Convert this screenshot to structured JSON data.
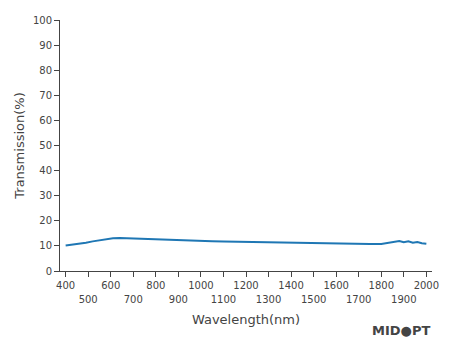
{
  "chart_data": {
    "type": "line",
    "xlabel": "Wavelength(nm)",
    "ylabel": "Transmission(%)",
    "x": [
      400,
      430,
      460,
      490,
      520,
      550,
      580,
      610,
      640,
      670,
      700,
      750,
      800,
      850,
      900,
      950,
      1000,
      1050,
      1100,
      1150,
      1200,
      1250,
      1300,
      1350,
      1400,
      1450,
      1500,
      1550,
      1600,
      1650,
      1700,
      1750,
      1800,
      1820,
      1840,
      1860,
      1880,
      1900,
      1920,
      1940,
      1960,
      1980,
      2000
    ],
    "values": [
      10.2,
      10.5,
      10.9,
      11.3,
      11.8,
      12.3,
      12.7,
      13.0,
      13.1,
      13.0,
      12.9,
      12.7,
      12.5,
      12.3,
      12.2,
      12.1,
      12.0,
      11.9,
      11.8,
      11.7,
      11.6,
      11.5,
      11.4,
      11.3,
      11.2,
      11.15,
      11.1,
      11.0,
      10.95,
      10.9,
      10.85,
      10.8,
      10.75,
      11.0,
      11.4,
      11.7,
      11.9,
      11.5,
      11.8,
      11.3,
      11.5,
      11.1,
      10.9
    ],
    "xlim": [
      375,
      2025
    ],
    "xticks": [
      400,
      500,
      600,
      700,
      800,
      900,
      1000,
      1100,
      1200,
      1300,
      1400,
      1500,
      1600,
      1700,
      1800,
      1900,
      2000
    ],
    "ylim": [
      0,
      100
    ],
    "yticks": [
      0,
      10,
      20,
      30,
      40,
      50,
      60,
      70,
      80,
      90,
      100
    ],
    "annotations": [
      "MID●PT"
    ],
    "grid": false
  }
}
